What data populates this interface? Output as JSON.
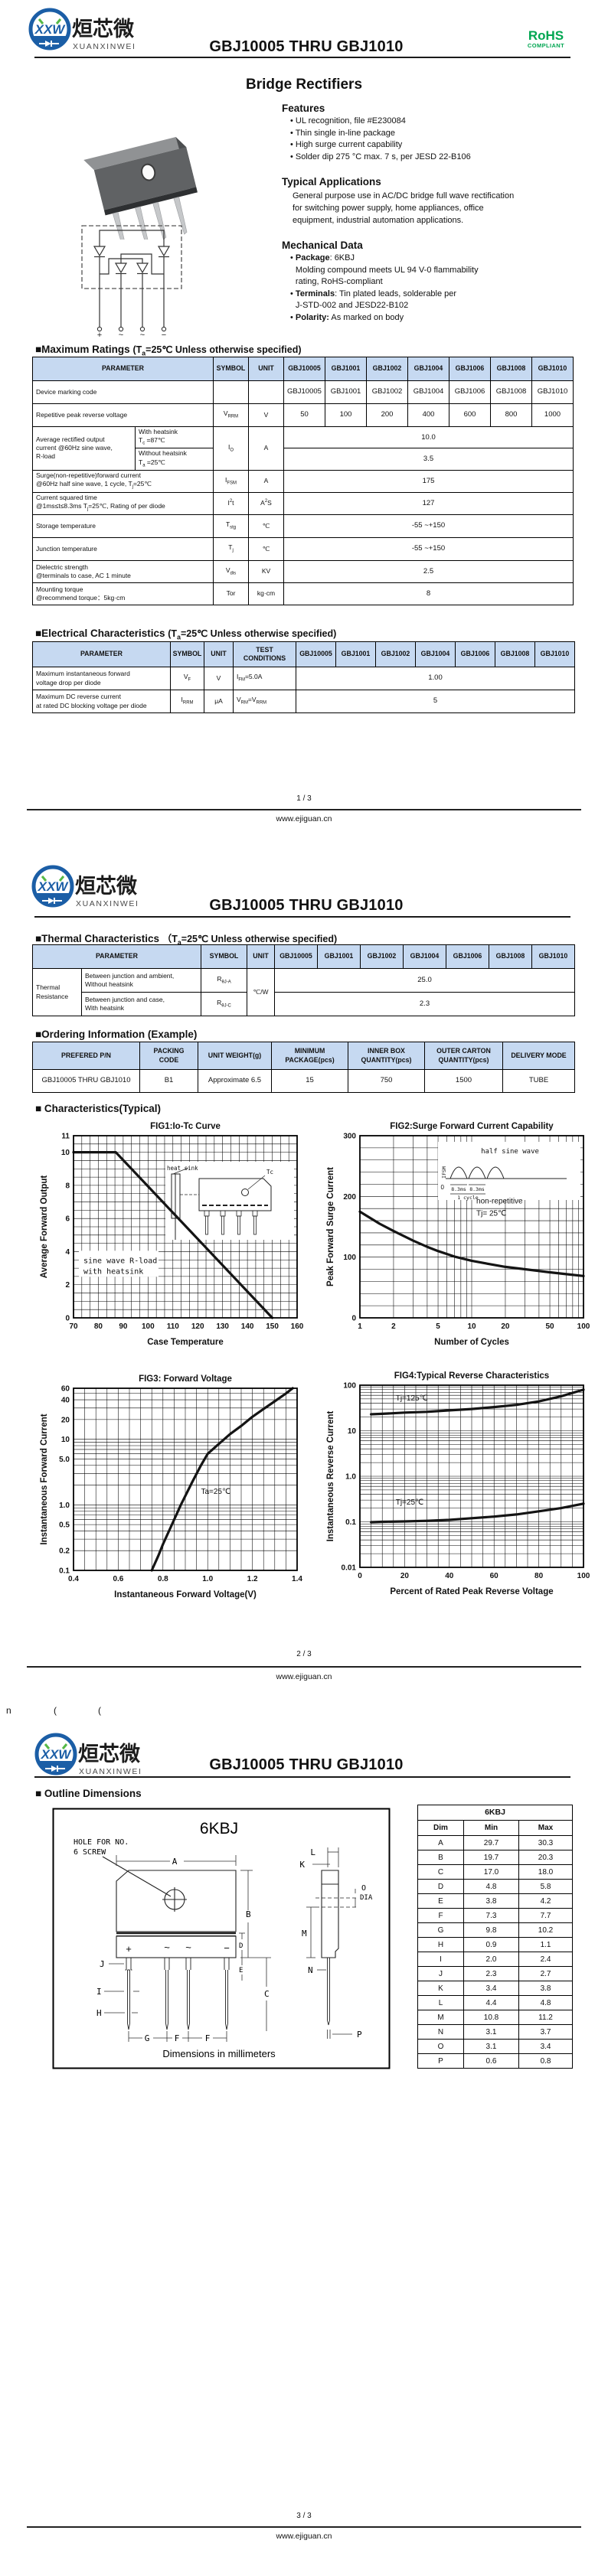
{
  "brand": {
    "logo_text": "XXW",
    "logo_cn": "烜芯微",
    "logo_en": "XUANXINWEI",
    "title": "GBJ10005 THRU GBJ1010",
    "rohs": "RoHS",
    "rohs_sub": "COMPLIANT",
    "url": "www.ejiguan.cn",
    "blue": "#1b5ea6",
    "green": "#56b947",
    "rohs_green": "#00a651",
    "table_header_bg": "#c6d9f1"
  },
  "page1": {
    "heading": "Bridge Rectifiers",
    "features_title": "Features",
    "features": [
      "UL recognition, file #E230084",
      "Thin single in-line package",
      "High surge current capability",
      "Solder dip 275 °C max. 7 s, per JESD 22-B106"
    ],
    "apps_title": "Typical Applications",
    "apps_lines": [
      "General purpose use in AC/DC bridge full wave rectification",
      "for switching power supply, home appliances, office",
      "equipment, industrial automation applications."
    ],
    "mech_title": "Mechanical Data",
    "mech_items": [
      {
        "lines": [
          {
            "b": "Package",
            "t": ": 6KBJ"
          },
          {
            "b": "",
            "t": "Molding compound meets UL 94 V-0 flammability"
          },
          {
            "b": "",
            "t": "rating, RoHS-compliant"
          }
        ]
      },
      {
        "lines": [
          {
            "b": "Terminals",
            "t": ": Tin plated leads, solderable  per"
          },
          {
            "b": "",
            "t": "J-STD-002 and JESD22-B102"
          }
        ]
      },
      {
        "lines": [
          {
            "b": "Polarity:",
            "t": " As marked on body"
          }
        ]
      }
    ],
    "schematic_pins": [
      "+",
      "~",
      "~",
      "−"
    ],
    "max_ratings": {
      "title": "■Maximum Ratings",
      "cond": "(T_{a}=25℃ Unless otherwise specified)",
      "col_headers": [
        "PARAMETER",
        "SYMBOL",
        "UNIT"
      ],
      "parts": [
        "GBJ10005",
        "GBJ1001",
        "GBJ1002",
        "GBJ1004",
        "GBJ1006",
        "GBJ1008",
        "GBJ1010"
      ],
      "rows": [
        {
          "param": [
            "Device marking code"
          ],
          "symbol": "",
          "unit": "",
          "values": [
            "GBJ10005",
            "GBJ1001",
            "GBJ1002",
            "GBJ1004",
            "GBJ1006",
            "GBJ1008",
            "GBJ1010"
          ]
        },
        {
          "param": [
            "Repetitive peak reverse voltage"
          ],
          "symbol": "V_{RRM}",
          "unit": "V",
          "values": [
            "50",
            "100",
            "200",
            "400",
            "600",
            "800",
            "1000"
          ]
        },
        {
          "param": [
            "Average rectified output",
            "current  @60Hz sine wave,",
            "R-load"
          ],
          "symbol": "I_{O}",
          "unit": "A",
          "sub": [
            {
              "cond": [
                "With heatsink",
                "T_{c} =87℃"
              ],
              "value": "10.0"
            },
            {
              "cond": [
                "Without heatsink",
                "T_{a} =25℃"
              ],
              "value": "3.5"
            }
          ]
        },
        {
          "param": [
            "Surge(non-repetitive)forward current",
            "@60Hz half sine wave, 1 cycle, T_{j}=25℃"
          ],
          "symbol": "I_{FSM}",
          "unit": "A",
          "value": "175"
        },
        {
          "param": [
            "Current squared time",
            "@1ms≤t≤8.3ms T_{j}=25℃, Rating of per diode"
          ],
          "symbol": "I^{2}t",
          "unit": "A^{2}S",
          "value": "127"
        },
        {
          "param": [
            "Storage temperature"
          ],
          "symbol": "T_{stg}",
          "unit": "℃",
          "value": "-55 ~+150"
        },
        {
          "param": [
            "Junction temperature"
          ],
          "symbol": "T_{j}",
          "unit": "℃",
          "value": "-55 ~+150"
        },
        {
          "param": [
            "Dielectric strength",
            "@terminals to case, AC 1 minute"
          ],
          "symbol": "V_{dis}",
          "unit": "KV",
          "value": "2.5"
        },
        {
          "param": [
            "Mounting torque",
            "@recommend torque：5kg·cm"
          ],
          "symbol": "Tor",
          "unit": "kg·cm",
          "value": "8"
        }
      ]
    },
    "electrical": {
      "title": "■Electrical Characteristics",
      "cond": "(T_{a}=25℃ Unless otherwise specified)",
      "col_headers": [
        "PARAMETER",
        "SYMBOL",
        "UNIT",
        "TEST CONDITIONS"
      ],
      "rows": [
        {
          "param": [
            "Maximum instantaneous forward",
            "voltage drop per diode"
          ],
          "symbol": "V_{F}",
          "unit": "V",
          "cond": "I_{FM}=5.0A",
          "value": "1.00"
        },
        {
          "param": [
            "Maximum DC reverse current",
            "at rated DC blocking voltage per diode"
          ],
          "symbol": "I_{RRM}",
          "unit": "μA",
          "cond": "V_{RM}=V_{RRM}",
          "value": "5"
        }
      ]
    },
    "page_num": "1 / 3"
  },
  "page2": {
    "thermal": {
      "title": "■Thermal Characteristics",
      "cond": "（T_{a}=25℃ Unless otherwise specified)",
      "group": "Thermal Resistance",
      "unit": "℃/W",
      "rows": [
        {
          "desc": [
            "Between junction and ambient,",
            "Without heatsink"
          ],
          "symbol": "R_{θJ-A}",
          "value": "25.0"
        },
        {
          "desc": [
            "Between junction and case,",
            "With heatsink"
          ],
          "symbol": "R_{θJ-C}",
          "value": "2.3"
        }
      ]
    },
    "ordering": {
      "title": "■Ordering Information (Example)",
      "headers": [
        [
          "PREFERED P/N"
        ],
        [
          "PACKING",
          "CODE"
        ],
        [
          "UNIT WEIGHT(g)"
        ],
        [
          "MINIMUM",
          "PACKAGE(pcs)"
        ],
        [
          "INNER BOX",
          "QUANTITY(pcs)"
        ],
        [
          "OUTER CARTON",
          "QUANTITY(pcs)"
        ],
        [
          "DELIVERY MODE"
        ]
      ],
      "row": [
        "GBJ10005 THRU GBJ1010",
        "B1",
        "Approximate  6.5",
        "15",
        "750",
        "1500",
        "TUBE"
      ]
    },
    "charts_title": "■ Characteristics(Typical)",
    "page_num": "2 / 3"
  },
  "chart_data": [
    {
      "id": "fig1",
      "type": "line",
      "title": "FIG1:Io-Tc Curve",
      "xlabel": "Case Temperature",
      "ylabel": "Average Forward Output",
      "x": {
        "scale": "linear",
        "min": 70,
        "max": 160,
        "ticks": [
          70,
          80,
          90,
          100,
          110,
          120,
          130,
          140,
          150,
          160
        ],
        "minor_step": 3.3333
      },
      "y": {
        "scale": "linear",
        "min": 0,
        "max": 11,
        "ticks": [
          0,
          2,
          4,
          6,
          8,
          10,
          11
        ],
        "minor_step": 0.5
      },
      "series": [
        {
          "name": "Io with heatsink",
          "points": [
            [
              70,
              10
            ],
            [
              87,
              10
            ],
            [
              150,
              0
            ]
          ]
        }
      ],
      "annotations": [
        {
          "x": 74,
          "y": 3.45,
          "text": "sine wave R-load",
          "mono": true,
          "box": true
        },
        {
          "x": 74,
          "y": 2.8,
          "text": "with heatsink",
          "mono": true
        }
      ],
      "inset": "heatsink",
      "inset_labels": {
        "heatsink": "heat sink",
        "tc": "Tc"
      }
    },
    {
      "id": "fig2",
      "type": "line",
      "title": "FIG2:Surge Forward Current Capability",
      "xlabel": "Number of Cycles",
      "ylabel": "Peak Forward Surge Current",
      "x": {
        "scale": "log",
        "min": 1,
        "max": 100,
        "ticks": [
          1,
          2,
          5,
          10,
          20,
          50,
          100
        ]
      },
      "y": {
        "scale": "linear",
        "min": 0,
        "max": 300,
        "ticks": [
          0,
          100,
          200,
          300
        ],
        "minor_step": 20
      },
      "series": [
        {
          "name": "IFSM",
          "points": [
            [
              1,
              175
            ],
            [
              1.5,
              155
            ],
            [
              2,
              143
            ],
            [
              3,
              127
            ],
            [
              4,
              117
            ],
            [
              5,
              110
            ],
            [
              7,
              101
            ],
            [
              10,
              94
            ],
            [
              15,
              88
            ],
            [
              20,
              84
            ],
            [
              30,
              80
            ],
            [
              50,
              75
            ],
            [
              70,
              72
            ],
            [
              100,
              69
            ]
          ]
        }
      ],
      "annotations": [
        {
          "x": 11,
          "y": 192,
          "text": "non-repetitive"
        },
        {
          "x": 11,
          "y": 172,
          "text": "Tj= 25℃"
        }
      ],
      "inset": "halfsine",
      "inset_labels": {
        "title": "half sine wave",
        "ifsm": "IFSM",
        "t1": "8.3ms",
        "t2": "8.3ms",
        "cycle": "1 cycle",
        "zero": "0"
      }
    },
    {
      "id": "fig3",
      "type": "line",
      "title": "FIG3: Forward Voltage",
      "xlabel": "Instantaneous Forward Voltage(V)",
      "ylabel": "Instantaneous Forward Current",
      "x": {
        "scale": "linear",
        "min": 0.4,
        "max": 1.4,
        "ticks": [
          0.4,
          0.6,
          0.8,
          1.0,
          1.2,
          1.4
        ],
        "tick_labels": [
          "0.4",
          "0.6",
          "0.8",
          "1.0",
          "1.2",
          "1.4"
        ],
        "minor_step": 0.05
      },
      "y": {
        "scale": "log",
        "min": 0.1,
        "max": 60,
        "ticks": [
          0.1,
          0.2,
          0.5,
          1.0,
          5.0,
          10,
          20,
          40,
          60
        ],
        "tick_labels": [
          "0.1",
          "0.2",
          "0.5",
          "1.0",
          "5.0",
          "10",
          "20",
          "40",
          "60"
        ]
      },
      "series": [
        {
          "name": "VF",
          "points": [
            [
              0.75,
              0.1
            ],
            [
              0.78,
              0.17
            ],
            [
              0.8,
              0.25
            ],
            [
              0.84,
              0.5
            ],
            [
              0.88,
              1.0
            ],
            [
              0.93,
              2.2
            ],
            [
              0.97,
              4.0
            ],
            [
              1.0,
              6.0
            ],
            [
              1.05,
              8.5
            ],
            [
              1.1,
              12
            ],
            [
              1.15,
              16
            ],
            [
              1.2,
              22
            ],
            [
              1.25,
              29
            ],
            [
              1.3,
              38
            ],
            [
              1.35,
              50
            ],
            [
              1.38,
              60
            ]
          ]
        }
      ],
      "annotations": [
        {
          "x": 0.97,
          "y": 1.6,
          "text": "Ta=25℃"
        }
      ]
    },
    {
      "id": "fig4",
      "type": "line",
      "title": "FIG4:Typical Reverse Characteristics",
      "xlabel": "Percent of Rated Peak Reverse Voltage",
      "ylabel": "Instantaneous Reverse Current",
      "x": {
        "scale": "linear",
        "min": 0,
        "max": 100,
        "ticks": [
          0,
          20,
          40,
          60,
          80,
          100
        ],
        "minor_step": 5
      },
      "y": {
        "scale": "log",
        "min": 0.01,
        "max": 100,
        "ticks": [
          0.01,
          0.1,
          1.0,
          10,
          100
        ],
        "tick_labels": [
          "0.01",
          "0.1",
          "1.0",
          "10",
          "100"
        ]
      },
      "series": [
        {
          "name": "Tj=125℃",
          "points": [
            [
              5,
              23
            ],
            [
              10,
              23.5
            ],
            [
              20,
              25
            ],
            [
              30,
              26
            ],
            [
              40,
              28
            ],
            [
              50,
              30
            ],
            [
              60,
              33
            ],
            [
              70,
              37
            ],
            [
              80,
              44
            ],
            [
              90,
              57
            ],
            [
              100,
              80
            ]
          ]
        },
        {
          "name": "Tj=25℃",
          "points": [
            [
              5,
              0.098
            ],
            [
              10,
              0.1
            ],
            [
              20,
              0.102
            ],
            [
              30,
              0.105
            ],
            [
              40,
              0.11
            ],
            [
              50,
              0.12
            ],
            [
              60,
              0.13
            ],
            [
              70,
              0.145
            ],
            [
              80,
              0.17
            ],
            [
              90,
              0.2
            ],
            [
              100,
              0.25
            ]
          ]
        }
      ],
      "annotations": [
        {
          "x": 16,
          "y": 52,
          "text": "Tj=125℃"
        },
        {
          "x": 16,
          "y": 0.27,
          "text": "Tj=25℃"
        }
      ]
    }
  ],
  "page3": {
    "outline_title": "■ Outline Dimensions",
    "drawing": {
      "pkg": "6KBJ",
      "hole_note1": "HOLE FOR NO.",
      "hole_note2": "6 SCREW",
      "pins": [
        "+",
        "~",
        "~",
        "−"
      ],
      "dims": {
        "A": "A",
        "B": "B",
        "C": "C",
        "D": "D",
        "E": "E",
        "F": "F",
        "G": "G",
        "H": "H",
        "I": "I",
        "J": "J",
        "K": "K",
        "L": "L",
        "M": "M",
        "N": "N",
        "O": "O",
        "DIA": "DIA",
        "P": "P"
      },
      "caption": "Dimensions in millimeters"
    },
    "dim_table": {
      "title": "6KBJ",
      "headers": [
        "Dim",
        "Min",
        "Max"
      ],
      "rows": [
        [
          "A",
          "29.7",
          "30.3"
        ],
        [
          "B",
          "19.7",
          "20.3"
        ],
        [
          "C",
          "17.0",
          "18.0"
        ],
        [
          "D",
          "4.8",
          "5.8"
        ],
        [
          "E",
          "3.8",
          "4.2"
        ],
        [
          "F",
          "7.3",
          "7.7"
        ],
        [
          "G",
          "9.8",
          "10.2"
        ],
        [
          "H",
          "0.9",
          "1.1"
        ],
        [
          "I",
          "2.0",
          "2.4"
        ],
        [
          "J",
          "2.3",
          "2.7"
        ],
        [
          "K",
          "3.4",
          "3.8"
        ],
        [
          "L",
          "4.4",
          "4.8"
        ],
        [
          "M",
          "10.8",
          "11.2"
        ],
        [
          "N",
          "3.1",
          "3.7"
        ],
        [
          "O",
          "3.1",
          "3.4"
        ],
        [
          "P",
          "0.6",
          "0.8"
        ]
      ]
    },
    "artifact": [
      "n",
      "(",
      "("
    ],
    "page_num": "3 / 3"
  }
}
